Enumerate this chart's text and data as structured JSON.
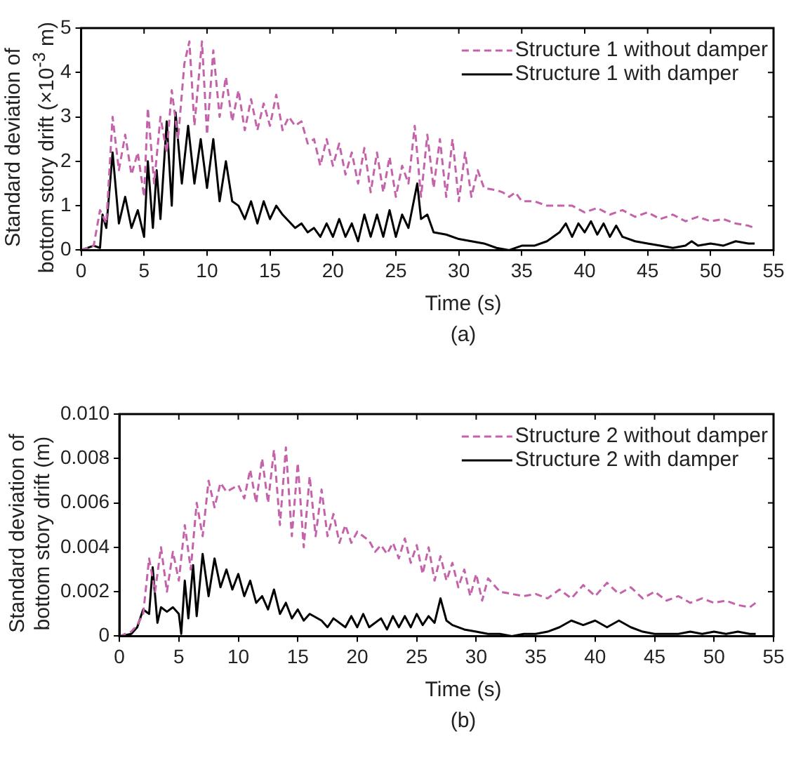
{
  "chart_data": [
    {
      "type": "line",
      "xlabel": "Time (s)",
      "ylabel": "Standard deviation of\nbottom story drift (×10$^{-3}$ m)",
      "annotations": [
        "(a)"
      ],
      "xlim": [
        0,
        55
      ],
      "xticks": [
        0,
        5,
        10,
        15,
        20,
        25,
        30,
        35,
        40,
        45,
        50,
        55
      ],
      "ylim": [
        0,
        5
      ],
      "yticks": [
        0,
        1,
        2,
        3,
        4,
        5
      ],
      "grid": false,
      "legend": "top right",
      "series": [
        {
          "name": "Structure 1 without damper",
          "color": "#c462aa",
          "line_style": "dashed",
          "x": [
            0,
            0.5,
            1,
            1.5,
            2,
            2.5,
            3,
            3.5,
            4,
            4.5,
            5,
            5.3,
            5.8,
            6.3,
            6.8,
            7.2,
            7.7,
            8.2,
            8.6,
            9,
            9.6,
            10,
            10.5,
            11,
            11.5,
            12,
            12.5,
            13,
            13.5,
            14,
            14.5,
            15,
            15.5,
            16,
            16.5,
            17,
            17.5,
            18,
            18.5,
            19,
            19.5,
            20,
            20.5,
            21,
            21.5,
            22,
            22.5,
            23,
            23.5,
            24,
            24.5,
            25,
            25.5,
            26,
            26.5,
            27,
            27.5,
            28,
            28.5,
            29,
            29.5,
            30,
            30.5,
            31,
            31.5,
            32,
            33,
            33.5,
            34,
            34.5,
            35,
            36,
            37,
            38,
            39,
            40,
            41,
            42,
            43,
            44,
            45,
            46,
            47,
            48,
            49,
            50,
            51,
            52,
            53,
            53.5
          ],
          "values": [
            0,
            0.05,
            0.1,
            0.9,
            0.6,
            3.0,
            1.8,
            2.6,
            1.7,
            2.2,
            1.2,
            3.2,
            1.5,
            3.0,
            2.2,
            3.6,
            2.5,
            4.2,
            4.7,
            2.8,
            4.7,
            2.6,
            4.5,
            3.0,
            3.9,
            2.9,
            3.6,
            2.7,
            3.4,
            2.7,
            3.3,
            2.8,
            3.5,
            2.7,
            3.0,
            2.8,
            2.9,
            2.4,
            2.5,
            1.9,
            2.5,
            1.9,
            2.4,
            1.7,
            2.2,
            1.5,
            2.3,
            1.3,
            2.2,
            1.3,
            2.1,
            1.2,
            1.9,
            1.5,
            2.8,
            1.2,
            2.6,
            1.4,
            2.5,
            1.2,
            2.5,
            1.1,
            2.2,
            1.2,
            1.8,
            1.4,
            1.35,
            1.3,
            1.2,
            1.3,
            1.1,
            1.1,
            1.0,
            1.0,
            1.0,
            0.85,
            0.95,
            0.8,
            0.9,
            0.75,
            0.85,
            0.7,
            0.8,
            0.65,
            0.75,
            0.65,
            0.7,
            0.6,
            0.55,
            0.5
          ]
        },
        {
          "name": "Structure 1 with damper",
          "color": "#000000",
          "line_style": "solid",
          "x": [
            0,
            1,
            1.5,
            1.7,
            2,
            2.5,
            3,
            3.5,
            4,
            4.5,
            5,
            5.3,
            5.7,
            6,
            6.3,
            6.8,
            7.2,
            7.5,
            8,
            8.5,
            9,
            9.5,
            10,
            10.5,
            11,
            11.5,
            12,
            12.5,
            13,
            13.5,
            14,
            14.5,
            15,
            15.5,
            16,
            17,
            17.5,
            18,
            18.5,
            19,
            19.5,
            20,
            20.5,
            21,
            21.5,
            22,
            22.5,
            23,
            23.5,
            24,
            24.5,
            25,
            25.5,
            26,
            26.7,
            27,
            27.5,
            28,
            29,
            30,
            31,
            32,
            33,
            34,
            35,
            36,
            37,
            38,
            38.5,
            39,
            39.5,
            40,
            40.5,
            41,
            41.5,
            42,
            42.5,
            43,
            44,
            45,
            46,
            47,
            48,
            48.5,
            49,
            50,
            51,
            52,
            53,
            53.5
          ],
          "values": [
            0,
            0.1,
            0.05,
            0.8,
            0.5,
            2.2,
            0.6,
            1.2,
            0.5,
            0.9,
            0.3,
            2.0,
            0.5,
            1.8,
            0.7,
            2.9,
            1.0,
            3.1,
            1.5,
            2.8,
            1.5,
            2.5,
            1.4,
            2.5,
            1.1,
            2.0,
            1.1,
            1.0,
            0.7,
            1.1,
            0.6,
            1.1,
            0.7,
            1.0,
            0.8,
            0.5,
            0.6,
            0.4,
            0.5,
            0.3,
            0.6,
            0.3,
            0.7,
            0.3,
            0.6,
            0.2,
            0.8,
            0.3,
            0.8,
            0.3,
            0.9,
            0.3,
            0.8,
            0.5,
            1.5,
            0.7,
            0.8,
            0.4,
            0.35,
            0.25,
            0.2,
            0.15,
            0.05,
            0,
            0.1,
            0.1,
            0.2,
            0.4,
            0.6,
            0.3,
            0.6,
            0.4,
            0.65,
            0.35,
            0.6,
            0.3,
            0.55,
            0.3,
            0.2,
            0.15,
            0.1,
            0.05,
            0.1,
            0.2,
            0.1,
            0.15,
            0.1,
            0.2,
            0.15,
            0.15
          ]
        }
      ]
    },
    {
      "type": "line",
      "xlabel": "Time (s)",
      "ylabel": "Standard deviation of\nbottom story drift (m)",
      "annotations": [
        "(b)"
      ],
      "xlim": [
        0,
        55
      ],
      "xticks": [
        0,
        5,
        10,
        15,
        20,
        25,
        30,
        35,
        40,
        45,
        50,
        55
      ],
      "ylim": [
        0,
        0.01
      ],
      "yticks": [
        0,
        {
          "value": 0.002,
          "label": "0.002"
        },
        {
          "value": 0.004,
          "label": "0.004"
        },
        {
          "value": 0.006,
          "label": "0.006"
        },
        {
          "value": 0.008,
          "label": "0.008"
        },
        {
          "value": 0.01,
          "label": "0.010"
        }
      ],
      "grid": false,
      "legend": "top right",
      "series": [
        {
          "name": "Structure 2 without damper",
          "color": "#c462aa",
          "line_style": "dashed",
          "x": [
            0,
            1,
            1.5,
            2,
            2.5,
            3,
            3.5,
            4,
            4.5,
            5,
            5.5,
            6,
            6.5,
            7,
            7.5,
            8,
            8.5,
            9,
            10,
            10.5,
            11,
            11.5,
            12,
            12.5,
            13,
            13.5,
            14,
            14.5,
            15,
            15.5,
            16,
            16.5,
            17,
            17.5,
            18,
            18.5,
            19,
            19.5,
            20,
            21,
            21.5,
            22,
            22.5,
            23,
            23.5,
            24,
            24.5,
            25,
            25.5,
            26,
            26.5,
            27,
            27.5,
            28,
            28.5,
            29,
            29.5,
            30,
            30.5,
            31,
            32,
            33,
            34,
            35,
            36,
            37,
            38,
            39,
            40,
            41,
            42,
            43,
            44,
            45,
            46,
            47,
            48,
            49,
            50,
            51,
            52,
            53,
            53.5
          ],
          "values": [
            0,
            0.0002,
            0.0005,
            0.001,
            0.0035,
            0.002,
            0.004,
            0.002,
            0.0038,
            0.0025,
            0.005,
            0.003,
            0.006,
            0.0045,
            0.007,
            0.0058,
            0.0069,
            0.0065,
            0.0068,
            0.0062,
            0.0075,
            0.006,
            0.008,
            0.006,
            0.0084,
            0.005,
            0.0085,
            0.0045,
            0.0078,
            0.004,
            0.0072,
            0.0045,
            0.0066,
            0.0045,
            0.0055,
            0.0042,
            0.005,
            0.0042,
            0.0047,
            0.0043,
            0.0038,
            0.0041,
            0.0037,
            0.0042,
            0.0035,
            0.0044,
            0.0033,
            0.0041,
            0.0028,
            0.004,
            0.0025,
            0.0036,
            0.0025,
            0.0033,
            0.0022,
            0.003,
            0.0018,
            0.0028,
            0.0016,
            0.0026,
            0.002,
            0.0019,
            0.0018,
            0.0019,
            0.0017,
            0.0021,
            0.0017,
            0.0023,
            0.0018,
            0.0024,
            0.0019,
            0.0022,
            0.0017,
            0.002,
            0.0016,
            0.0018,
            0.0015,
            0.0017,
            0.0015,
            0.0016,
            0.0014,
            0.0013,
            0.0015
          ]
        },
        {
          "name": "Structure 2 with damper",
          "color": "#000000",
          "line_style": "solid",
          "x": [
            0,
            1,
            1.5,
            2,
            2.5,
            2.8,
            3.2,
            3.5,
            4,
            4.5,
            5,
            5.2,
            5.5,
            5.8,
            6.2,
            6.5,
            7,
            7.5,
            8,
            8.5,
            9,
            9.5,
            10,
            10.5,
            11,
            11.5,
            12,
            12.5,
            13,
            13.5,
            14,
            14.5,
            15,
            15.5,
            16,
            17,
            17.5,
            18,
            19,
            19.5,
            20,
            20.5,
            21,
            22,
            22.5,
            23,
            23.5,
            24,
            24.5,
            25,
            25.5,
            26,
            26.5,
            27,
            27.5,
            28,
            29,
            30,
            31,
            32,
            33,
            34,
            35,
            36,
            37,
            38,
            39,
            40,
            41,
            42,
            43,
            44,
            45,
            46,
            47,
            48,
            49,
            50,
            51,
            52,
            53,
            53.5
          ],
          "values": [
            0,
            0.0001,
            0.0004,
            0.0012,
            0.001,
            0.0031,
            0.0006,
            0.0013,
            0.0011,
            0.0013,
            0.001,
            0.0001,
            0.0025,
            0.0008,
            0.0032,
            0.0009,
            0.0037,
            0.0018,
            0.0035,
            0.0022,
            0.003,
            0.0021,
            0.0028,
            0.0018,
            0.0025,
            0.0015,
            0.0018,
            0.0012,
            0.0021,
            0.001,
            0.0015,
            0.0008,
            0.0012,
            0.0007,
            0.001,
            0.0007,
            0.0004,
            0.0008,
            0.0004,
            0.0009,
            0.0004,
            0.001,
            0.0004,
            0.0008,
            0.0003,
            0.0009,
            0.0004,
            0.0009,
            0.0004,
            0.001,
            0.0005,
            0.0009,
            0.0006,
            0.0017,
            0.0007,
            0.0005,
            0.0003,
            0.0002,
            0.0001,
            0.0001,
            0,
            0.0001,
            0.0001,
            0.0002,
            0.0004,
            0.0007,
            0.0005,
            0.0007,
            0.0004,
            0.0007,
            0.0004,
            0.0002,
            0.0001,
            0.0001,
            0.0001,
            0.0002,
            0.0001,
            0.0002,
            0.0001,
            0.0002,
            0.0001,
            0.0001
          ]
        }
      ]
    }
  ]
}
